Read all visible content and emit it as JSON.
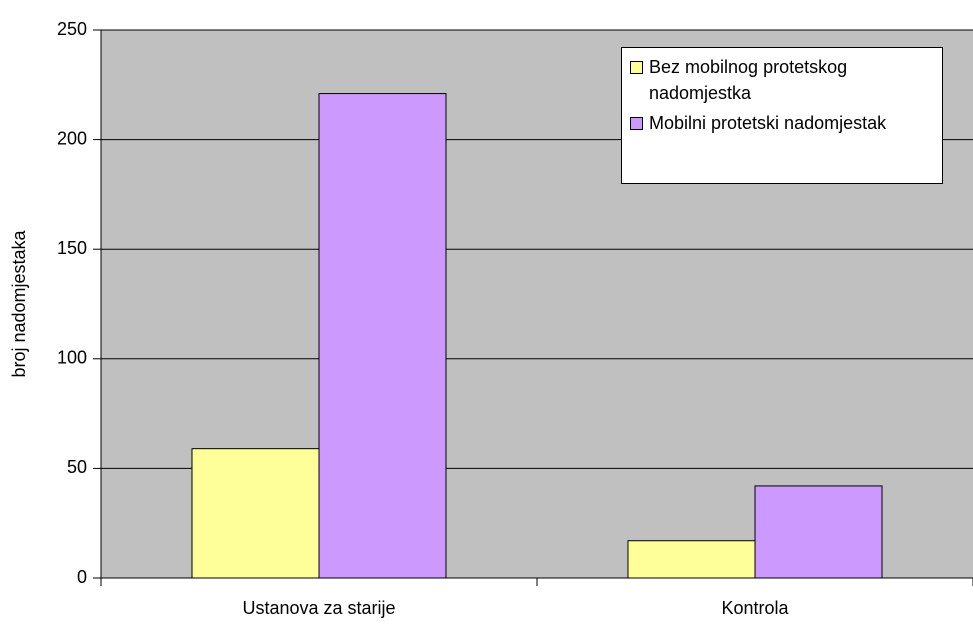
{
  "chart_data": {
    "type": "bar",
    "categories": [
      "Ustanova za starije",
      "Kontrola"
    ],
    "series": [
      {
        "name": "Bez mobilnog protetskog nadomjestka",
        "color": "#ffff99",
        "values": [
          59,
          17
        ]
      },
      {
        "name": "Mobilni protetski nadomjestak",
        "color": "#cc99ff",
        "values": [
          221,
          42
        ]
      }
    ],
    "y_label": "broj nadomjestaka",
    "ylim": [
      0,
      250
    ],
    "yticks": [
      0,
      50,
      100,
      150,
      200,
      250
    ],
    "grid": true,
    "legend": "top-right"
  }
}
